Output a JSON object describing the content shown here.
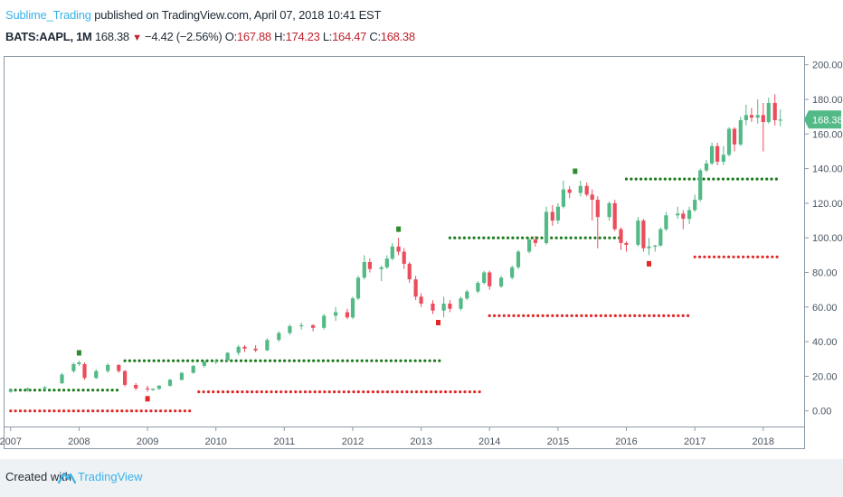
{
  "header": {
    "author": "Sublime_Trading",
    "published": " published on TradingView.com, April 07, 2018 10:41 EST",
    "symbol": "BATS:AAPL, 1M",
    "last": "168.38",
    "change": "−4.42 (−2.56%)",
    "open_label": "O:",
    "open": "167.88",
    "high_label": "H:",
    "high": "174.23",
    "low_label": "L:",
    "low": "164.47",
    "close_label": "C:",
    "close": "168.38"
  },
  "footer": {
    "created_with": "Created with",
    "brand": "TradingView"
  },
  "colors": {
    "up": "#53b987",
    "down": "#eb4d5c",
    "support_dots": "#1a7a1a",
    "resistance_dots": "#e02828",
    "price_label": "#53b987",
    "fractal_up": "#2e8b2e",
    "fractal_down": "#e02828"
  },
  "chart_data": {
    "type": "candlestick",
    "symbol": "BATS:AAPL",
    "interval": "1M",
    "x_tick_labels": [
      "2007",
      "2008",
      "2009",
      "2010",
      "2011",
      "2012",
      "2013",
      "2014",
      "2015",
      "2016",
      "2017",
      "2018"
    ],
    "y_tick_labels": [
      "0.00",
      "20.00",
      "40.00",
      "60.00",
      "80.00",
      "100.00",
      "120.00",
      "140.00",
      "160.00",
      "180.00",
      "200.00"
    ],
    "ylim": [
      -8,
      203
    ],
    "xlim": [
      2006.95,
      2018.32
    ],
    "last_price": "168.38",
    "grid": false,
    "candles": [
      {
        "t": 2007.0,
        "o": 11.0,
        "h": 12.5,
        "l": 10.5,
        "c": 12.0
      },
      {
        "t": 2007.25,
        "o": 12.0,
        "h": 13.5,
        "l": 11.0,
        "c": 13.0
      },
      {
        "t": 2007.5,
        "o": 13.0,
        "h": 14.5,
        "l": 12.0,
        "c": 13.5
      },
      {
        "t": 2007.75,
        "o": 16.0,
        "h": 22.0,
        "l": 15.5,
        "c": 21.0
      },
      {
        "t": 2007.92,
        "o": 23.0,
        "h": 28.0,
        "l": 22.0,
        "c": 27.0
      },
      {
        "t": 2008.0,
        "o": 27.0,
        "h": 29.0,
        "l": 26.0,
        "c": 28.0
      },
      {
        "t": 2008.08,
        "o": 27.0,
        "h": 28.0,
        "l": 18.0,
        "c": 19.0
      },
      {
        "t": 2008.25,
        "o": 19.0,
        "h": 24.0,
        "l": 18.5,
        "c": 23.0
      },
      {
        "t": 2008.42,
        "o": 23.0,
        "h": 27.5,
        "l": 22.0,
        "c": 26.5
      },
      {
        "t": 2008.58,
        "o": 26.5,
        "h": 27.0,
        "l": 22.0,
        "c": 23.0
      },
      {
        "t": 2008.67,
        "o": 23.0,
        "h": 23.5,
        "l": 14.0,
        "c": 15.0
      },
      {
        "t": 2008.83,
        "o": 15.0,
        "h": 16.0,
        "l": 12.0,
        "c": 13.0
      },
      {
        "t": 2009.0,
        "o": 13.0,
        "h": 14.5,
        "l": 11.0,
        "c": 12.5
      },
      {
        "t": 2009.08,
        "o": 12.5,
        "h": 13.0,
        "l": 11.5,
        "c": 12.8
      },
      {
        "t": 2009.17,
        "o": 12.8,
        "h": 15.0,
        "l": 12.0,
        "c": 14.5
      },
      {
        "t": 2009.33,
        "o": 14.5,
        "h": 18.5,
        "l": 14.0,
        "c": 18.0
      },
      {
        "t": 2009.5,
        "o": 18.0,
        "h": 22.5,
        "l": 17.5,
        "c": 22.0
      },
      {
        "t": 2009.67,
        "o": 22.0,
        "h": 26.5,
        "l": 21.5,
        "c": 26.0
      },
      {
        "t": 2009.83,
        "o": 26.0,
        "h": 29.0,
        "l": 25.0,
        "c": 28.5
      },
      {
        "t": 2010.0,
        "o": 28.5,
        "h": 30.0,
        "l": 27.0,
        "c": 29.0
      },
      {
        "t": 2010.17,
        "o": 29.0,
        "h": 34.0,
        "l": 28.5,
        "c": 33.5
      },
      {
        "t": 2010.33,
        "o": 33.5,
        "h": 38.0,
        "l": 32.0,
        "c": 37.0
      },
      {
        "t": 2010.42,
        "o": 37.0,
        "h": 38.0,
        "l": 34.0,
        "c": 36.0
      },
      {
        "t": 2010.58,
        "o": 36.0,
        "h": 38.0,
        "l": 34.0,
        "c": 35.0
      },
      {
        "t": 2010.75,
        "o": 35.0,
        "h": 42.0,
        "l": 34.5,
        "c": 41.0
      },
      {
        "t": 2010.92,
        "o": 41.0,
        "h": 46.0,
        "l": 40.0,
        "c": 45.0
      },
      {
        "t": 2011.08,
        "o": 45.0,
        "h": 50.0,
        "l": 44.0,
        "c": 49.0
      },
      {
        "t": 2011.25,
        "o": 49.0,
        "h": 51.0,
        "l": 47.0,
        "c": 49.5
      },
      {
        "t": 2011.42,
        "o": 49.5,
        "h": 50.0,
        "l": 46.0,
        "c": 48.0
      },
      {
        "t": 2011.58,
        "o": 48.0,
        "h": 56.0,
        "l": 47.0,
        "c": 55.0
      },
      {
        "t": 2011.75,
        "o": 55.0,
        "h": 60.0,
        "l": 52.0,
        "c": 57.0
      },
      {
        "t": 2011.92,
        "o": 57.0,
        "h": 59.0,
        "l": 53.0,
        "c": 54.0
      },
      {
        "t": 2012.0,
        "o": 54.0,
        "h": 66.0,
        "l": 53.0,
        "c": 65.0
      },
      {
        "t": 2012.08,
        "o": 65.0,
        "h": 78.0,
        "l": 64.0,
        "c": 77.0
      },
      {
        "t": 2012.17,
        "o": 77.0,
        "h": 90.0,
        "l": 76.0,
        "c": 86.0
      },
      {
        "t": 2012.25,
        "o": 86.0,
        "h": 88.0,
        "l": 80.0,
        "c": 82.0
      },
      {
        "t": 2012.42,
        "o": 82.0,
        "h": 84.0,
        "l": 75.0,
        "c": 83.0
      },
      {
        "t": 2012.5,
        "o": 83.0,
        "h": 90.0,
        "l": 82.0,
        "c": 88.0
      },
      {
        "t": 2012.58,
        "o": 88.0,
        "h": 97.0,
        "l": 87.0,
        "c": 95.0
      },
      {
        "t": 2012.67,
        "o": 95.0,
        "h": 100.0,
        "l": 90.0,
        "c": 92.0
      },
      {
        "t": 2012.75,
        "o": 92.0,
        "h": 94.0,
        "l": 82.0,
        "c": 85.0
      },
      {
        "t": 2012.83,
        "o": 85.0,
        "h": 86.0,
        "l": 74.0,
        "c": 76.0
      },
      {
        "t": 2012.92,
        "o": 76.0,
        "h": 78.0,
        "l": 64.0,
        "c": 66.0
      },
      {
        "t": 2013.0,
        "o": 66.0,
        "h": 68.0,
        "l": 60.0,
        "c": 62.0
      },
      {
        "t": 2013.17,
        "o": 62.0,
        "h": 64.0,
        "l": 56.0,
        "c": 58.0
      },
      {
        "t": 2013.33,
        "o": 58.0,
        "h": 66.0,
        "l": 54.0,
        "c": 62.0
      },
      {
        "t": 2013.42,
        "o": 62.0,
        "h": 64.0,
        "l": 57.0,
        "c": 59.0
      },
      {
        "t": 2013.58,
        "o": 59.0,
        "h": 66.0,
        "l": 58.0,
        "c": 65.0
      },
      {
        "t": 2013.67,
        "o": 65.0,
        "h": 70.0,
        "l": 64.0,
        "c": 69.0
      },
      {
        "t": 2013.83,
        "o": 69.0,
        "h": 75.0,
        "l": 68.0,
        "c": 74.0
      },
      {
        "t": 2013.92,
        "o": 74.0,
        "h": 81.0,
        "l": 73.0,
        "c": 80.0
      },
      {
        "t": 2014.0,
        "o": 80.0,
        "h": 81.0,
        "l": 70.0,
        "c": 72.0
      },
      {
        "t": 2014.17,
        "o": 72.0,
        "h": 78.0,
        "l": 71.0,
        "c": 77.0
      },
      {
        "t": 2014.33,
        "o": 77.0,
        "h": 84.0,
        "l": 76.0,
        "c": 83.0
      },
      {
        "t": 2014.42,
        "o": 83.0,
        "h": 93.0,
        "l": 82.0,
        "c": 92.0
      },
      {
        "t": 2014.58,
        "o": 92.0,
        "h": 100.0,
        "l": 91.0,
        "c": 99.0
      },
      {
        "t": 2014.67,
        "o": 99.0,
        "h": 101.0,
        "l": 95.0,
        "c": 97.0
      },
      {
        "t": 2014.83,
        "o": 97.0,
        "h": 118.0,
        "l": 96.0,
        "c": 115.0
      },
      {
        "t": 2014.92,
        "o": 115.0,
        "h": 119.0,
        "l": 107.0,
        "c": 110.0
      },
      {
        "t": 2015.0,
        "o": 110.0,
        "h": 120.0,
        "l": 108.0,
        "c": 118.0
      },
      {
        "t": 2015.08,
        "o": 118.0,
        "h": 133.0,
        "l": 117.0,
        "c": 128.0
      },
      {
        "t": 2015.17,
        "o": 128.0,
        "h": 130.0,
        "l": 123.0,
        "c": 126.0
      },
      {
        "t": 2015.33,
        "o": 126.0,
        "h": 133.0,
        "l": 124.0,
        "c": 130.0
      },
      {
        "t": 2015.42,
        "o": 130.0,
        "h": 132.0,
        "l": 124.0,
        "c": 125.0
      },
      {
        "t": 2015.5,
        "o": 125.0,
        "h": 128.0,
        "l": 110.0,
        "c": 122.0
      },
      {
        "t": 2015.58,
        "o": 122.0,
        "h": 124.0,
        "l": 94.0,
        "c": 112.0
      },
      {
        "t": 2015.75,
        "o": 112.0,
        "h": 121.0,
        "l": 110.0,
        "c": 120.0
      },
      {
        "t": 2015.83,
        "o": 120.0,
        "h": 122.0,
        "l": 104.0,
        "c": 105.0
      },
      {
        "t": 2015.92,
        "o": 105.0,
        "h": 106.0,
        "l": 93.0,
        "c": 97.0
      },
      {
        "t": 2016.0,
        "o": 97.0,
        "h": 98.0,
        "l": 92.0,
        "c": 96.0
      },
      {
        "t": 2016.17,
        "o": 96.0,
        "h": 112.0,
        "l": 95.0,
        "c": 110.0
      },
      {
        "t": 2016.25,
        "o": 110.0,
        "h": 111.0,
        "l": 92.0,
        "c": 94.0
      },
      {
        "t": 2016.33,
        "o": 94.0,
        "h": 100.0,
        "l": 90.0,
        "c": 95.0
      },
      {
        "t": 2016.42,
        "o": 95.0,
        "h": 96.0,
        "l": 92.0,
        "c": 95.5
      },
      {
        "t": 2016.5,
        "o": 95.5,
        "h": 106.0,
        "l": 95.0,
        "c": 105.0
      },
      {
        "t": 2016.58,
        "o": 105.0,
        "h": 115.0,
        "l": 104.0,
        "c": 113.0
      },
      {
        "t": 2016.75,
        "o": 113.0,
        "h": 118.0,
        "l": 111.0,
        "c": 114.0
      },
      {
        "t": 2016.83,
        "o": 114.0,
        "h": 116.0,
        "l": 105.0,
        "c": 111.0
      },
      {
        "t": 2016.92,
        "o": 111.0,
        "h": 118.0,
        "l": 108.0,
        "c": 116.0
      },
      {
        "t": 2017.0,
        "o": 116.0,
        "h": 125.0,
        "l": 115.0,
        "c": 122.0
      },
      {
        "t": 2017.08,
        "o": 122.0,
        "h": 140.0,
        "l": 121.0,
        "c": 139.0
      },
      {
        "t": 2017.17,
        "o": 139.0,
        "h": 145.0,
        "l": 138.0,
        "c": 143.0
      },
      {
        "t": 2017.25,
        "o": 143.0,
        "h": 155.0,
        "l": 142.0,
        "c": 153.0
      },
      {
        "t": 2017.33,
        "o": 153.0,
        "h": 155.0,
        "l": 142.0,
        "c": 144.0
      },
      {
        "t": 2017.42,
        "o": 144.0,
        "h": 153.0,
        "l": 142.0,
        "c": 148.0
      },
      {
        "t": 2017.5,
        "o": 148.0,
        "h": 164.0,
        "l": 147.0,
        "c": 163.0
      },
      {
        "t": 2017.58,
        "o": 163.0,
        "h": 164.0,
        "l": 150.0,
        "c": 154.0
      },
      {
        "t": 2017.67,
        "o": 154.0,
        "h": 170.0,
        "l": 153.0,
        "c": 168.0
      },
      {
        "t": 2017.75,
        "o": 168.0,
        "h": 177.0,
        "l": 165.0,
        "c": 171.0
      },
      {
        "t": 2017.83,
        "o": 171.0,
        "h": 175.0,
        "l": 167.0,
        "c": 169.5
      },
      {
        "t": 2017.92,
        "o": 169.5,
        "h": 180.0,
        "l": 166.0,
        "c": 171.0
      },
      {
        "t": 2018.0,
        "o": 171.0,
        "h": 178.0,
        "l": 150.0,
        "c": 167.0
      },
      {
        "t": 2018.08,
        "o": 167.0,
        "h": 181.0,
        "l": 166.0,
        "c": 178.0
      },
      {
        "t": 2018.17,
        "o": 178.0,
        "h": 183.0,
        "l": 165.0,
        "c": 168.0
      },
      {
        "t": 2018.25,
        "o": 167.88,
        "h": 174.23,
        "l": 164.47,
        "c": 168.38
      }
    ],
    "support_levels": [
      {
        "from": 2007.0,
        "to": 2008.58,
        "y": 12.0
      },
      {
        "from": 2008.67,
        "to": 2013.33,
        "y": 29.0
      },
      {
        "from": 2013.42,
        "to": 2015.92,
        "y": 100.0
      },
      {
        "from": 2016.0,
        "to": 2018.25,
        "y": 134.0
      }
    ],
    "resistance_levels": [
      {
        "from": 2007.0,
        "to": 2009.67,
        "y": 0.0
      },
      {
        "from": 2009.75,
        "to": 2013.92,
        "y": 11.0
      },
      {
        "from": 2014.0,
        "to": 2016.92,
        "y": 55.0
      },
      {
        "from": 2017.0,
        "to": 2018.25,
        "y": 89.0
      }
    ],
    "fractals_up": [
      {
        "t": 2008.0,
        "y": 33.5
      },
      {
        "t": 2012.67,
        "y": 105.0
      },
      {
        "t": 2015.25,
        "y": 138.5
      }
    ],
    "fractals_down": [
      {
        "t": 2009.0,
        "y": 7.0
      },
      {
        "t": 2013.25,
        "y": 51.0
      },
      {
        "t": 2016.33,
        "y": 85.0
      }
    ]
  }
}
